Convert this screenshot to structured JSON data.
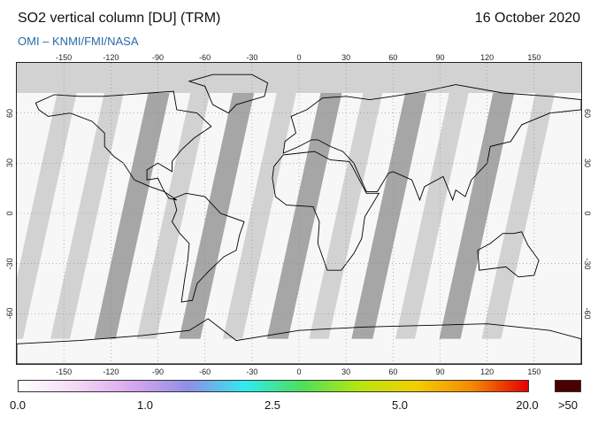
{
  "header": {
    "title": "SO2 vertical column [DU] (TRM)",
    "date": "16 October 2020",
    "source": "OMI  –  KNMI/FMI/NASA"
  },
  "map": {
    "lon_ticks_top": [
      "-150",
      "-120",
      "-90",
      "-60",
      "-30",
      "0",
      "30",
      "60",
      "90",
      "120",
      "150"
    ],
    "lon_ticks_bottom": [
      "-150",
      "-120",
      "-90",
      "-60",
      "-30",
      "0",
      "30",
      "60",
      "90",
      "120",
      "150"
    ],
    "lat_ticks_left": [
      "60",
      "30",
      "0",
      "-30",
      "-60"
    ],
    "lat_ticks_right": [
      "60",
      "30",
      "0",
      "-30",
      "-60"
    ],
    "lon_range": [
      -180,
      180
    ],
    "lat_range": [
      -90,
      90
    ],
    "colors": {
      "no_data": "#d2d2d2",
      "night_band": "#a6a6a6",
      "coastline": "#000000",
      "graticule": "#888888",
      "data_background": "#f7f7f8"
    }
  },
  "colorbar": {
    "labels": [
      "0.0",
      "1.0",
      "2.5",
      "5.0",
      "20.0",
      ">50"
    ],
    "stops": [
      "#ffffff",
      "#f5d8f5",
      "#d8a8ee",
      "#8f8ee8",
      "#31eaf0",
      "#4be05a",
      "#b4e612",
      "#f2d000",
      "#f58a00",
      "#e60000"
    ],
    "overflow_color": "#4a0000"
  }
}
